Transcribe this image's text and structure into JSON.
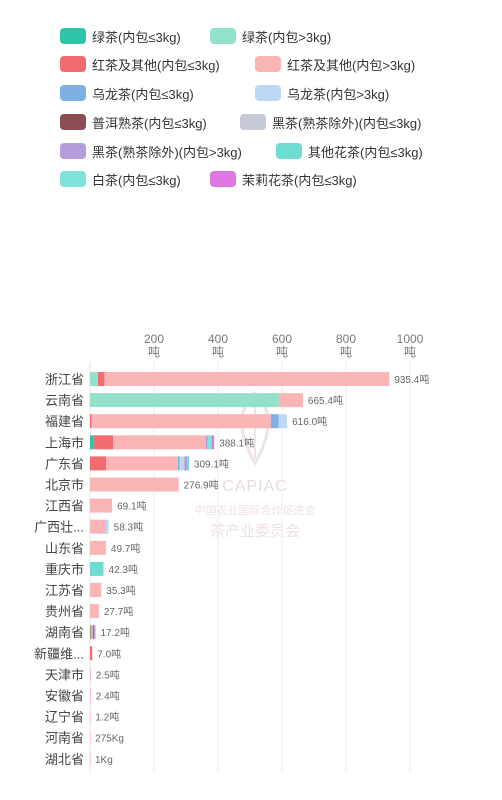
{
  "legend": {
    "items": [
      {
        "label": "绿茶(内包≤3kg)",
        "color": "#2ec4a7"
      },
      {
        "label": "绿茶(内包>3kg)",
        "color": "#93e0cc"
      },
      {
        "label": "红茶及其他(内包≤3kg)",
        "color": "#f16b6f"
      },
      {
        "label": "红茶及其他(内包>3kg)",
        "color": "#f9b4b6"
      },
      {
        "label": "乌龙茶(内包≤3kg)",
        "color": "#7fb0e3"
      },
      {
        "label": "乌龙茶(内包>3kg)",
        "color": "#bcd8f3"
      },
      {
        "label": "普洱熟茶(内包≤3kg)",
        "color": "#8c4d52"
      },
      {
        "label": "黑茶(熟茶除外)(内包≤3kg)",
        "color": "#c5c8d6"
      },
      {
        "label": "黑茶(熟茶除外)(内包>3kg)",
        "color": "#b59ddc"
      },
      {
        "label": "其他花茶(内包≤3kg)",
        "color": "#6edcd0"
      },
      {
        "label": "白茶(内包≤3kg)",
        "color": "#7ee3d9"
      },
      {
        "label": "茉莉花茶(内包≤3kg)",
        "color": "#de77e2"
      }
    ]
  },
  "watermark": {
    "logo": "CAPIAC",
    "line1": "中国农业国际合作促进会",
    "line2": "茶产业委员会"
  },
  "chart_data": {
    "type": "bar",
    "orientation": "horizontal",
    "stacked": true,
    "x_ticks": [
      "200\n吨",
      "400\n吨",
      "600\n吨",
      "800\n吨",
      "1000\n吨"
    ],
    "x_tick_values": [
      200,
      400,
      600,
      800,
      1000
    ],
    "xlim": [
      0,
      1100
    ],
    "grid": true,
    "legend_position": "top",
    "categories": [
      "浙江省",
      "云南省",
      "福建省",
      "上海市",
      "广东省",
      "北京市",
      "江西省",
      "广西壮...",
      "山东省",
      "重庆市",
      "江苏省",
      "贵州省",
      "湖南省",
      "新疆维...",
      "天津市",
      "安徽省",
      "辽宁省",
      "河南省",
      "湖北省"
    ],
    "total_labels": [
      "935.4吨",
      "665.4吨",
      "616.0吨",
      "388.1吨",
      "309.1吨",
      "276.9吨",
      "69.1吨",
      "58.3吨",
      "49.7吨",
      "42.3吨",
      "35.3吨",
      "27.7吨",
      "17.2吨",
      "7.0吨",
      "2.5吨",
      "2.4吨",
      "1.2吨",
      "275Kg",
      "1Kg"
    ],
    "series": [
      {
        "name": "绿茶(内包≤3kg)",
        "values": [
          0,
          0,
          0,
          12,
          0,
          0,
          0,
          0,
          0,
          0,
          0,
          0,
          2,
          0,
          0,
          0,
          0,
          0,
          0
        ]
      },
      {
        "name": "绿茶(内包>3kg)",
        "values": [
          25,
          590,
          0,
          0,
          0,
          0,
          0,
          0,
          0,
          0,
          0,
          0,
          0,
          0,
          0,
          0,
          0,
          0,
          0
        ]
      },
      {
        "name": "红茶及其他(内包≤3kg)",
        "values": [
          20,
          0,
          5,
          60,
          50,
          0,
          0,
          0,
          0,
          0,
          0,
          0,
          3,
          7.0,
          0,
          0,
          0,
          0,
          0
        ]
      },
      {
        "name": "红茶及其他(内包>3kg)",
        "values": [
          890.4,
          75.4,
          560,
          290,
          225,
          276.9,
          69.1,
          50,
          49.7,
          0,
          35.3,
          27.7,
          5,
          0,
          2.5,
          2.4,
          1.2,
          0.275,
          0.001
        ]
      },
      {
        "name": "乌龙茶(内包≤3kg)",
        "values": [
          0,
          0,
          25,
          0,
          5,
          0,
          0,
          0,
          0,
          0,
          0,
          0,
          0,
          0,
          0,
          0,
          0,
          0,
          0
        ]
      },
      {
        "name": "乌龙茶(内包>3kg)",
        "values": [
          0,
          0,
          26,
          0,
          15,
          0,
          0,
          8.3,
          0,
          0,
          0,
          0,
          0,
          0,
          0,
          0,
          0,
          0,
          0
        ]
      },
      {
        "name": "普洱熟茶(内包≤3kg)",
        "values": [
          0,
          0,
          0,
          0,
          0,
          0,
          0,
          0,
          0,
          0,
          0,
          0,
          3,
          0,
          0,
          0,
          0,
          0,
          0
        ]
      },
      {
        "name": "黑茶(熟茶除外)(内包≤3kg)",
        "values": [
          0,
          0,
          0,
          0,
          0,
          0,
          0,
          0,
          0,
          0,
          0,
          0,
          0,
          0,
          0,
          0,
          0,
          0,
          0
        ]
      },
      {
        "name": "黑茶(熟茶除外)(内包>3kg)",
        "values": [
          0,
          0,
          0,
          6,
          8,
          0,
          0,
          0,
          0,
          0,
          0,
          0,
          4.2,
          0,
          0,
          0,
          0,
          0,
          0
        ]
      },
      {
        "name": "其他花茶(内包≤3kg)",
        "values": [
          0,
          0,
          0,
          0,
          6.1,
          0,
          0,
          0,
          0,
          42.3,
          0,
          0,
          0,
          0,
          0,
          0,
          0,
          0,
          0
        ]
      },
      {
        "name": "白茶(内包≤3kg)",
        "values": [
          0,
          0,
          0,
          12,
          0,
          0,
          0,
          0,
          0,
          0,
          0,
          0,
          0,
          0,
          0,
          0,
          0,
          0,
          0
        ]
      },
      {
        "name": "茉莉花茶(内包≤3kg)",
        "values": [
          0,
          0,
          0,
          8.1,
          0,
          0,
          0,
          0,
          0,
          0,
          0,
          0,
          0,
          0,
          0,
          0,
          0,
          0,
          0
        ]
      }
    ]
  }
}
